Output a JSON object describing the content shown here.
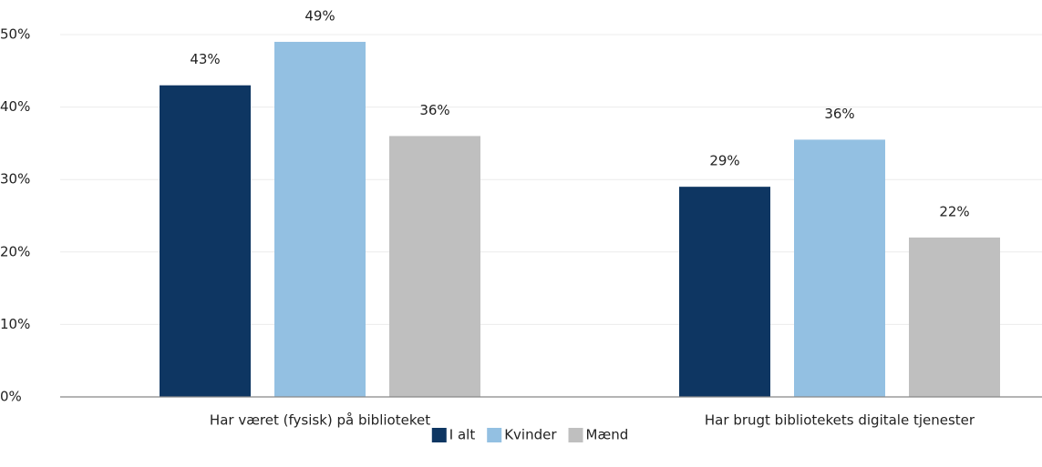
{
  "chart_data": {
    "type": "bar",
    "categories": [
      "Har været (fysisk) på biblioteket",
      "Har brugt bibliotekets digitale tjenester"
    ],
    "series": [
      {
        "name": "I alt",
        "color": "#0e3662",
        "values": [
          43,
          29
        ],
        "value_labels": [
          "43%",
          "29%"
        ]
      },
      {
        "name": "Kvinder",
        "color": "#93c0e2",
        "values": [
          49,
          35.5
        ],
        "value_labels": [
          "49%",
          "36%"
        ]
      },
      {
        "name": "Mænd",
        "color": "#bfbfbf",
        "values": [
          36,
          22
        ],
        "value_labels": [
          "36%",
          "22%"
        ]
      }
    ],
    "ylim": [
      0,
      50
    ],
    "yticks": [
      {
        "value": 0,
        "label": "0%"
      },
      {
        "value": 10,
        "label": "10%"
      },
      {
        "value": 20,
        "label": "20%"
      },
      {
        "value": 30,
        "label": "30%"
      },
      {
        "value": 40,
        "label": "40%"
      },
      {
        "value": 50,
        "label": "50%"
      }
    ],
    "grid": true,
    "legend": "bottom"
  }
}
